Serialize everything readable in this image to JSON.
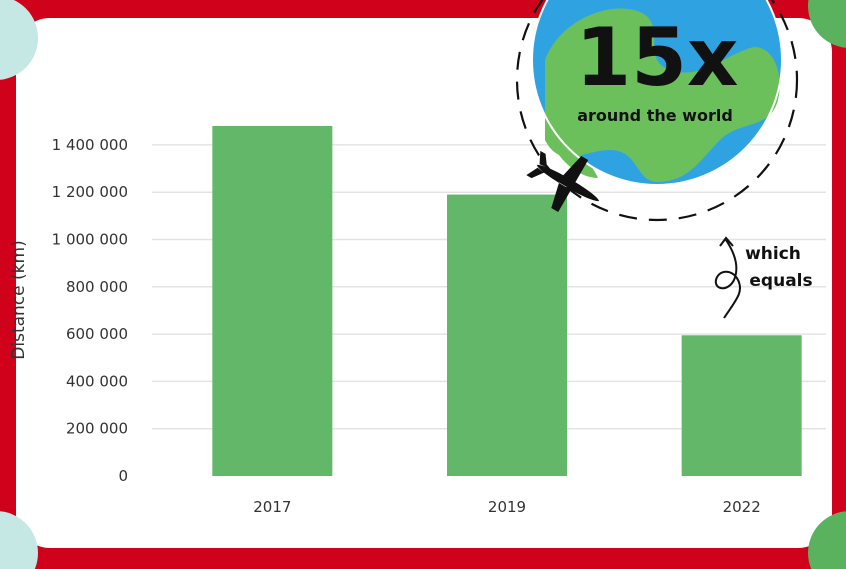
{
  "colors": {
    "frame_red": "#d0021b",
    "corner_left_teal": "#c6e8e4",
    "corner_right_green": "#5bb25e",
    "bar_green": "#62b769",
    "grid": "#e3e3e3",
    "globe_blue": "#2fa3e2",
    "globe_land": "#6cc05c"
  },
  "callout": {
    "multiplier": "15x",
    "caption": "around the world",
    "note_line1": "which",
    "note_line2": "equals",
    "icons": [
      "globe-icon",
      "airplane-icon",
      "curly-arrow-icon"
    ]
  },
  "chart_data": {
    "type": "bar",
    "categories": [
      "2017",
      "2019",
      "2022"
    ],
    "values": [
      1480000,
      1190000,
      595000
    ],
    "title": "",
    "xlabel": "",
    "ylabel": "Distance (km)",
    "ylim": [
      0,
      1400000
    ],
    "yticks": [
      0,
      200000,
      400000,
      600000,
      800000,
      1000000,
      1200000,
      1400000
    ],
    "ytick_labels": [
      "0",
      "200 000",
      "400 000",
      "600 000",
      "800 000",
      "1 000 000",
      "1 200 000",
      "1 400 000"
    ],
    "grid": true,
    "legend": "none"
  }
}
